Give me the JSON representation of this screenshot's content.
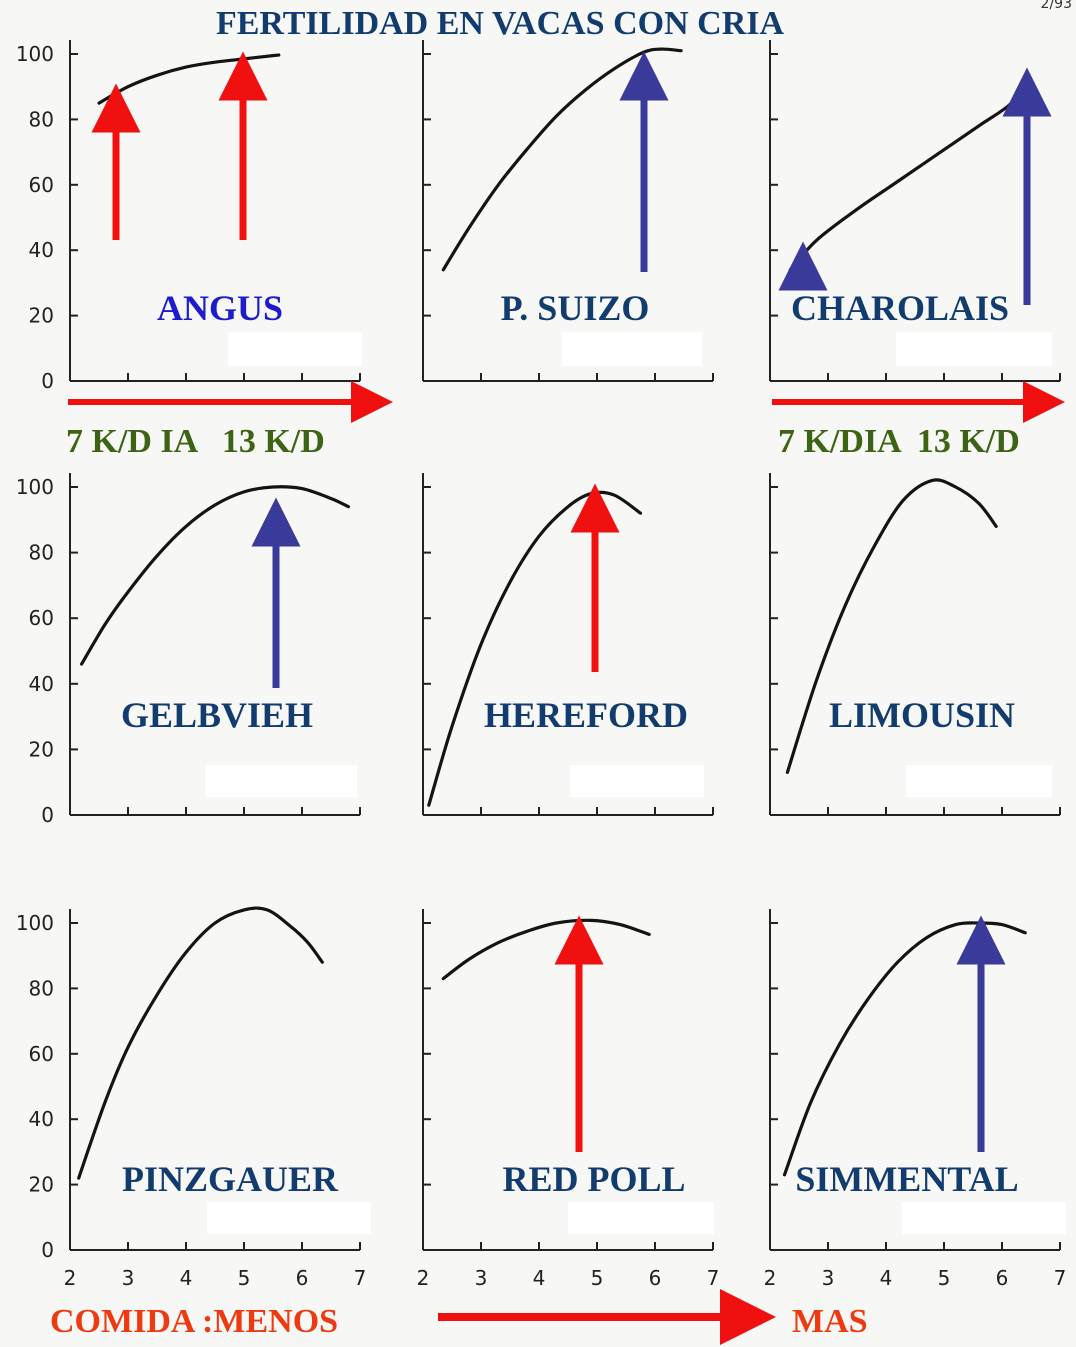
{
  "title": "FERTILIDAD EN VACAS CON CRIA",
  "corner_text": "2/93",
  "colors": {
    "navy": "#123c6e",
    "blue": "#1c1ccc",
    "green": "#3c6414",
    "red": "#f01010",
    "orange_red": "#ee3a10",
    "arrow_blue": "#3a3a9a",
    "curve": "#141414"
  },
  "y_ticks": [
    "0",
    "20",
    "40",
    "60",
    "80",
    "100"
  ],
  "x_ticks": [
    "2",
    "3",
    "4",
    "5",
    "6",
    "7"
  ],
  "annotations": {
    "left_feed_range": "7 K/D IA   13 K/D",
    "right_feed_range": "7 K/DIA  13 K/D",
    "bottom_less": "COMIDA :MENOS",
    "bottom_more": "MAS"
  },
  "chart_data": [
    {
      "type": "line",
      "label": "ANGUS",
      "xlim": [
        2,
        7
      ],
      "ylim": [
        0,
        100
      ],
      "x": [
        2.5,
        3.0,
        3.5,
        4.0,
        4.5,
        5.0,
        5.5,
        5.6
      ],
      "y": [
        85,
        90,
        93.5,
        96,
        97.5,
        98.5,
        99.5,
        99.7
      ]
    },
    {
      "type": "line",
      "label": "P. SUIZO",
      "xlim": [
        2,
        7
      ],
      "ylim": [
        0,
        100
      ],
      "x": [
        2.35,
        2.8,
        3.3,
        3.8,
        4.3,
        4.8,
        5.3,
        5.8,
        6.1,
        6.45
      ],
      "y": [
        34,
        47,
        60,
        71,
        81,
        89,
        95.5,
        100.5,
        101.5,
        101
      ]
    },
    {
      "type": "line",
      "label": "CHAROLAIS",
      "xlim": [
        2,
        7
      ],
      "ylim": [
        0,
        100
      ],
      "x": [
        2.35,
        2.8,
        3.5,
        4.2,
        4.9,
        5.6,
        6.1,
        6.35
      ],
      "y": [
        34,
        43,
        52.5,
        61,
        69.5,
        78,
        84,
        89
      ]
    },
    {
      "type": "line",
      "label": "GELBVIEH",
      "xlim": [
        2,
        7
      ],
      "ylim": [
        0,
        100
      ],
      "x": [
        2.2,
        2.6,
        3.0,
        3.5,
        4.0,
        4.5,
        5.0,
        5.5,
        6.0,
        6.5,
        6.8
      ],
      "y": [
        46,
        58,
        68,
        79,
        88,
        94.5,
        98.5,
        100,
        99.5,
        96.5,
        94
      ]
    },
    {
      "type": "line",
      "label": "HEREFORD",
      "xlim": [
        2,
        7
      ],
      "ylim": [
        0,
        100
      ],
      "x": [
        2.1,
        2.5,
        3.0,
        3.5,
        4.0,
        4.5,
        4.9,
        5.3,
        5.75
      ],
      "y": [
        3,
        27,
        52,
        71,
        85,
        94,
        98,
        97.5,
        92
      ]
    },
    {
      "type": "line",
      "label": "LIMOUSIN",
      "xlim": [
        2,
        7
      ],
      "ylim": [
        0,
        100
      ],
      "x": [
        2.3,
        2.8,
        3.3,
        3.8,
        4.3,
        4.8,
        5.2,
        5.6,
        5.9
      ],
      "y": [
        13,
        41,
        64,
        82,
        96,
        102,
        100,
        95,
        88
      ]
    },
    {
      "type": "line",
      "label": "PINZGAUER",
      "xlim": [
        2,
        7
      ],
      "ylim": [
        0,
        100
      ],
      "x": [
        2.15,
        2.6,
        3.0,
        3.5,
        4.0,
        4.5,
        5.0,
        5.4,
        5.8,
        6.1,
        6.35
      ],
      "y": [
        22,
        45,
        62,
        78,
        91,
        100,
        104,
        104,
        99,
        94,
        88
      ]
    },
    {
      "type": "line",
      "label": "RED POLL",
      "xlim": [
        2,
        7
      ],
      "ylim": [
        0,
        100
      ],
      "x": [
        2.35,
        2.8,
        3.3,
        3.8,
        4.3,
        4.9,
        5.4,
        5.9
      ],
      "y": [
        83,
        89,
        94,
        97.5,
        100,
        100.8,
        99.5,
        96.5
      ]
    },
    {
      "type": "line",
      "label": "SIMMENTAL",
      "xlim": [
        2,
        7
      ],
      "ylim": [
        0,
        100
      ],
      "x": [
        2.25,
        2.7,
        3.2,
        3.7,
        4.2,
        4.7,
        5.2,
        5.6,
        6.0,
        6.4
      ],
      "y": [
        23,
        45,
        63,
        77,
        88,
        95.5,
        99.5,
        100,
        99.5,
        97
      ]
    }
  ]
}
